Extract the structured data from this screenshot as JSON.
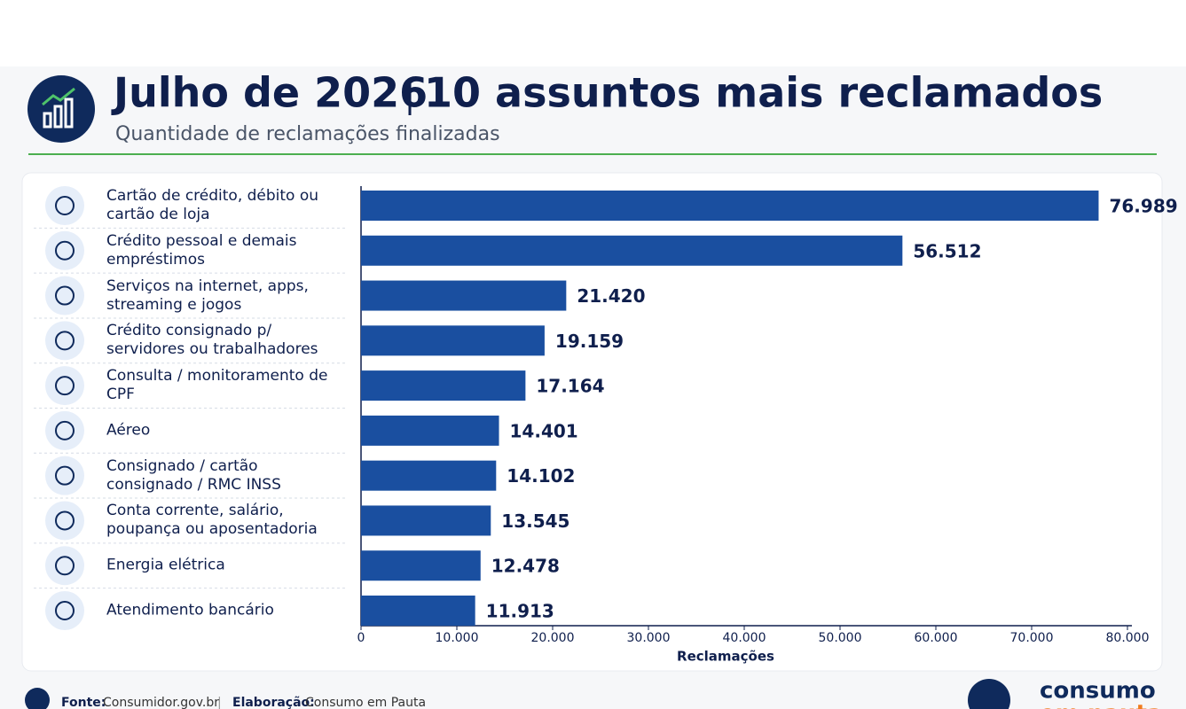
{
  "chart_data": {
    "type": "bar",
    "orientation": "horizontal",
    "title": "Julho de 2026",
    "title_part2": "10 assuntos mais reclamados",
    "subtitle": "Quantidade de reclamações finalizadas",
    "x_axis_label": "Reclamações",
    "categories": [
      "Cartão de crédito, débito ou cartão de loja",
      "Crédito pessoal e demais empréstimos",
      "Serviços na internet, apps, streaming e jogos",
      "Crédito consignado p/ servidores ou trabalhadores",
      "Consulta / monitoramento de CPF",
      "Aéreo",
      "Consignado / cartão consignado / RMC INSS",
      "Conta corrente, salário, poupança ou aposentadoria",
      "Energia elétrica",
      "Atendimento bancário"
    ],
    "values": [
      76989,
      56512,
      21420,
      19159,
      17164,
      14401,
      14102,
      13545,
      12478,
      11913
    ],
    "value_labels": [
      "76.989",
      "56.512",
      "21.420",
      "19.159",
      "17.164",
      "14.401",
      "14.102",
      "13.545",
      "12.478",
      "11.913"
    ],
    "color": "#1a4fa0",
    "xlim": [
      0,
      80000
    ],
    "xticks": [
      0,
      {
        "value": 10000,
        "label": "10.000"
      },
      {
        "value": 20000,
        "label": "20.000"
      },
      {
        "value": 30000,
        "label": "30.000"
      },
      {
        "value": 40000,
        "label": "40.000"
      },
      {
        "value": 50000,
        "label": "50.000"
      },
      {
        "value": 60000,
        "label": "60.000"
      },
      {
        "value": 70000,
        "label": "70.000"
      },
      {
        "value": 80000,
        "label": "80.000"
      }
    ],
    "footer": {
      "source_label": "Fonte:",
      "source": "Consumidor.gov.br",
      "credit_label": "Elaboração:",
      "credit": "Consumo em Pauta"
    },
    "logo": {
      "line1": "consumo",
      "line2": "em pauta"
    }
  }
}
